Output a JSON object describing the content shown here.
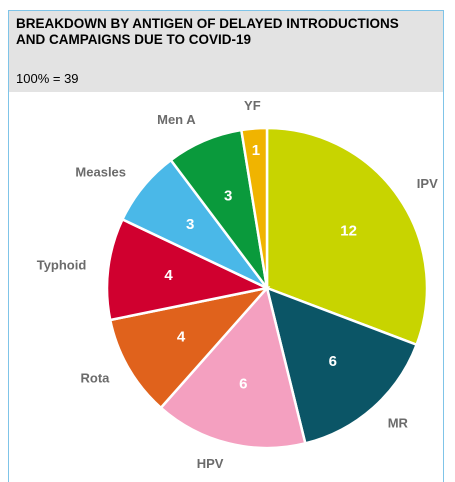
{
  "chart_data": {
    "type": "pie",
    "title": "BREAKDOWN BY ANTIGEN OF DELAYED INTRODUCTIONS AND CAMPAIGNS DUE TO COVID-19",
    "subtitle": "100% = 39",
    "categories": [
      "IPV",
      "MR",
      "HPV",
      "Rota",
      "Typhoid",
      "Measles",
      "Men A",
      "YF"
    ],
    "values": [
      12,
      6,
      6,
      4,
      4,
      3,
      3,
      1
    ],
    "colors": [
      "#c8d400",
      "#0b5566",
      "#f4a0c0",
      "#e0621c",
      "#d0002f",
      "#4ab8e8",
      "#0a9a3c",
      "#f0b400"
    ]
  }
}
